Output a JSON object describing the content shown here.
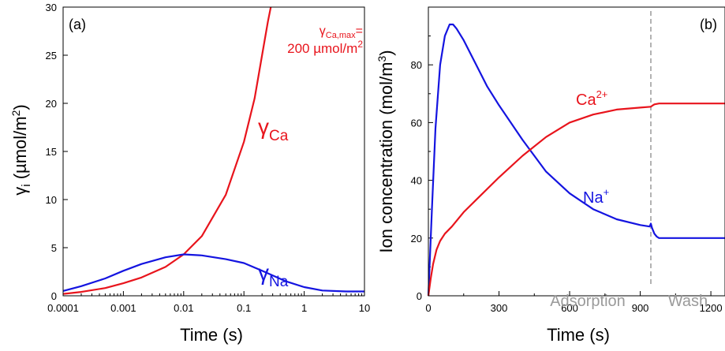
{
  "colors": {
    "ca": "#e8141c",
    "na": "#1414e0",
    "divider": "#a0a0a0",
    "phase_text": "#9a9a9a"
  },
  "chart_data": [
    {
      "type": "line",
      "panel_label": "(a)",
      "xlabel": "Time (s)",
      "ylabel": {
        "base": "γ",
        "sub": "i",
        "unit_pre": " (µmol/m",
        "unit_sup": "2",
        "unit_post": ")"
      },
      "x_scale": "log",
      "xlim": [
        0.0001,
        10
      ],
      "ylim": [
        0,
        30
      ],
      "x_ticks": [
        0.0001,
        0.001,
        0.01,
        0.1,
        1,
        10
      ],
      "x_tick_labels": [
        "0.0001",
        "0.001",
        "0.01",
        "0.1",
        "1",
        "10"
      ],
      "y_ticks": [
        0,
        5,
        10,
        15,
        20,
        25,
        30
      ],
      "y_tick_labels": [
        "0",
        "5",
        "10",
        "15",
        "20",
        "25",
        "30"
      ],
      "annotation": {
        "line1_base": "γ",
        "line1_sub": "Ca,max",
        "line1_post": "=",
        "line2_pre": "200 µmol/m",
        "line2_sup": "2"
      },
      "series": [
        {
          "id": "ca",
          "label_base": "γ",
          "label_sub": "Ca",
          "x": [
            0.0001,
            0.0002,
            0.0005,
            0.001,
            0.002,
            0.005,
            0.01,
            0.02,
            0.05,
            0.1,
            0.15,
            0.2,
            0.25,
            0.3
          ],
          "values": [
            0.2,
            0.4,
            0.8,
            1.3,
            1.9,
            3.0,
            4.3,
            6.2,
            10.5,
            16.0,
            20.5,
            25.0,
            28.5,
            31.0
          ]
        },
        {
          "id": "na",
          "label_base": "γ",
          "label_sub": "Na",
          "x": [
            0.0001,
            0.0002,
            0.0005,
            0.001,
            0.002,
            0.005,
            0.01,
            0.02,
            0.05,
            0.1,
            0.2,
            0.5,
            1,
            2,
            5,
            10
          ],
          "values": [
            0.5,
            1.0,
            1.8,
            2.6,
            3.3,
            4.0,
            4.3,
            4.2,
            3.8,
            3.4,
            2.6,
            1.5,
            0.9,
            0.55,
            0.45,
            0.45
          ]
        }
      ]
    },
    {
      "type": "line",
      "panel_label": "(b)",
      "xlabel": "Time (s)",
      "ylabel": {
        "pre": "Ion concentration (mol/m",
        "sup": "3",
        "post": ")"
      },
      "xlim": [
        0,
        1260
      ],
      "ylim": [
        0,
        100
      ],
      "x_ticks": [
        0,
        300,
        600,
        900,
        1200
      ],
      "x_tick_labels": [
        "0",
        "300",
        "600",
        "900",
        "1200"
      ],
      "y_ticks": [
        0,
        20,
        40,
        60,
        80
      ],
      "y_tick_labels": [
        "0",
        "20",
        "40",
        "60",
        "80"
      ],
      "divider_x": 945,
      "phases": [
        "Adsorption",
        "Wash"
      ],
      "series": [
        {
          "id": "na",
          "label_base": "Na",
          "label_sup": "+",
          "x": [
            0,
            15,
            30,
            50,
            70,
            90,
            105,
            120,
            150,
            200,
            250,
            300,
            400,
            500,
            600,
            700,
            800,
            900,
            940,
            945,
            950,
            960,
            970,
            980,
            1000,
            1100,
            1260
          ],
          "values": [
            0,
            30,
            58,
            80,
            90,
            94,
            94,
            92.5,
            88.5,
            80.5,
            72.5,
            66,
            54,
            43,
            35.5,
            30,
            26.5,
            24.5,
            24,
            25,
            23.5,
            21.5,
            20.5,
            20,
            20,
            20,
            20
          ]
        },
        {
          "id": "ca",
          "label_base": "Ca",
          "label_sup": "2+",
          "x": [
            0,
            5,
            10,
            20,
            35,
            50,
            70,
            100,
            150,
            200,
            300,
            400,
            500,
            600,
            700,
            800,
            900,
            945,
            950,
            960,
            980,
            1000,
            1100,
            1260
          ],
          "values": [
            0,
            3,
            6,
            11,
            16,
            19,
            21.5,
            24,
            29,
            33,
            41,
            48.5,
            55,
            60,
            62.8,
            64.5,
            65.2,
            65.5,
            65.8,
            66.3,
            66.6,
            66.6,
            66.6,
            66.6
          ]
        }
      ]
    }
  ]
}
